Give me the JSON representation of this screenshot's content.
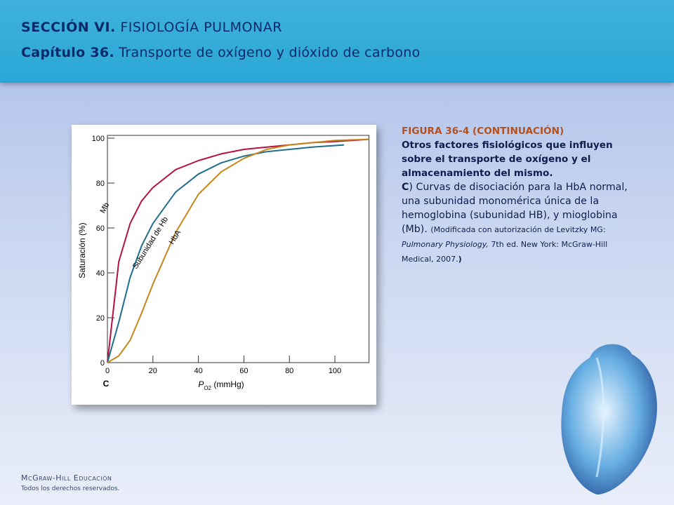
{
  "header": {
    "section_bold": "SECCIÓN VI.",
    "section_rest": " FISIOLOGÍA PULMONAR",
    "chapter_bold": "Capítulo 36.",
    "chapter_rest": " Transporte de oxígeno y dióxido de carbono"
  },
  "caption": {
    "heading": "FIGURA 36-4 (CONTINUACIÓN)",
    "lead": "Otros factores fisiológicos que influyen sobre el transporte de oxígeno y el almacenamiento del mismo.",
    "panel": "C",
    "text": ") Curvas de disociación para la HbA normal, una subunidad monomérica única de la hemoglobina (subunidad HB), y mioglobina (Mb). ",
    "note_a": "(Modificada con autorización de Levitzky MG: ",
    "note_italic": "Pulmonary Physiology,",
    "note_b": " 7th ed. New York: McGraw-Hill Medical, 2007.",
    "note_end": ")"
  },
  "footer": {
    "publisher": "McGraw-Hill Educación",
    "rights": "Todos los derechos reservados."
  },
  "chart_data": {
    "type": "line",
    "panel_label": "C",
    "ylabel": "Saturación (%)",
    "xlabel": {
      "main": "P",
      "sub": "O2",
      "rest": " (mmHg)"
    },
    "xlim": [
      0,
      115
    ],
    "ylim": [
      0,
      100
    ],
    "xticks": [
      0,
      20,
      40,
      60,
      80,
      100
    ],
    "yticks": [
      0,
      20,
      40,
      60,
      80,
      100
    ],
    "series": [
      {
        "name": "Mb",
        "color": "#b5123e",
        "x": [
          0,
          5,
          10,
          15,
          20,
          30,
          40,
          50,
          60,
          70,
          80,
          90,
          100,
          115
        ],
        "values": [
          0,
          45,
          62,
          72,
          78,
          86,
          90,
          93,
          95,
          96,
          97,
          98,
          98.5,
          99.5
        ]
      },
      {
        "name": "Subunidad de Hb",
        "color": "#1f6e8c",
        "x": [
          0,
          5,
          10,
          15,
          20,
          30,
          40,
          50,
          60,
          70,
          80,
          90,
          104
        ],
        "values": [
          0,
          18,
          38,
          52,
          62,
          76,
          84,
          89,
          92,
          94,
          95,
          96,
          97
        ]
      },
      {
        "name": "HbA",
        "color": "#c8861a",
        "x": [
          0,
          5,
          10,
          15,
          20,
          30,
          40,
          50,
          60,
          70,
          80,
          90,
          100,
          115
        ],
        "values": [
          0,
          3,
          10,
          22,
          35,
          58,
          75,
          85,
          91,
          95,
          97,
          98,
          99,
          99.5
        ]
      }
    ]
  }
}
